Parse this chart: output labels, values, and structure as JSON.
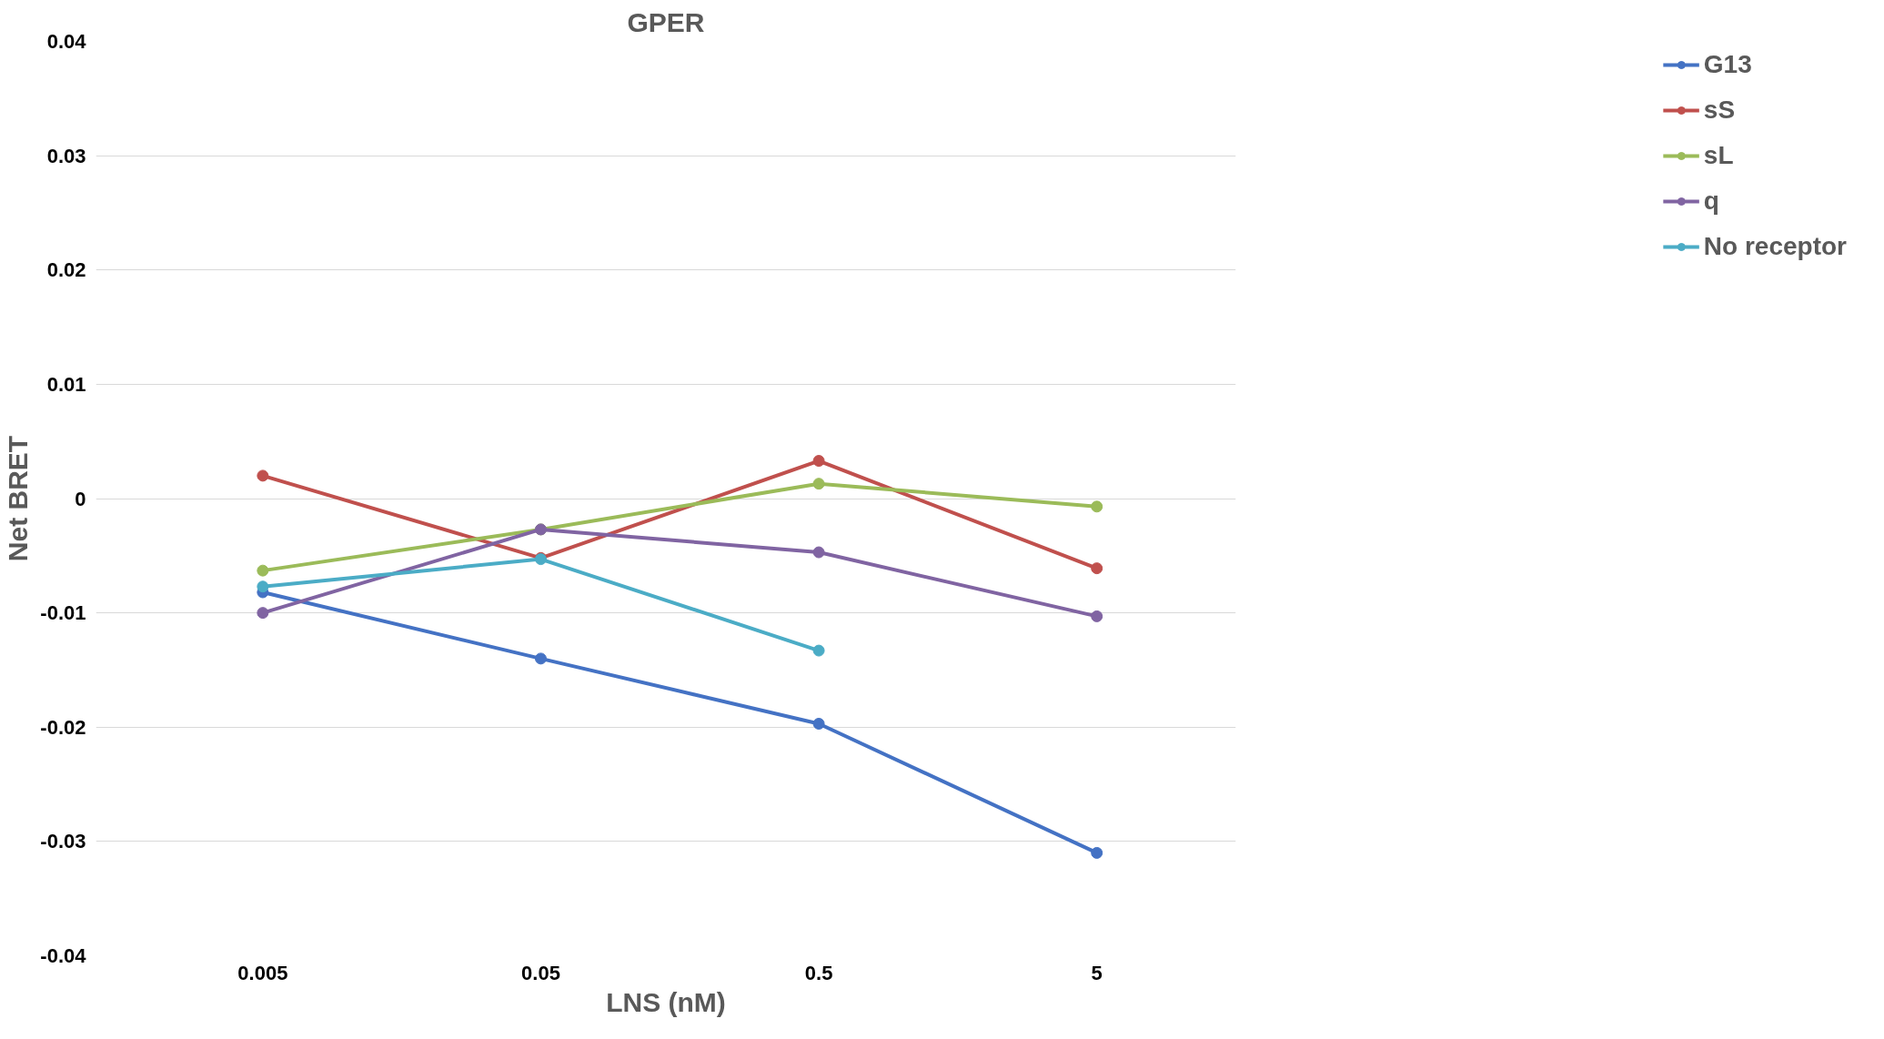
{
  "chart_data": {
    "type": "line",
    "title": "GPER",
    "xlabel": "LNS (nM)",
    "ylabel": "Net BRET",
    "categories": [
      "0.005",
      "0.05",
      "0.5",
      "5"
    ],
    "series": [
      {
        "name": "G13",
        "color": "#4472c4",
        "values": [
          -0.0082,
          -0.014,
          -0.0197,
          -0.031
        ]
      },
      {
        "name": "sS",
        "color": "#c0504d",
        "values": [
          0.002,
          -0.0052,
          0.0033,
          -0.0061
        ]
      },
      {
        "name": "sL",
        "color": "#9bbb59",
        "values": [
          -0.0063,
          -0.0027,
          0.0013,
          -0.0007
        ]
      },
      {
        "name": "q",
        "color": "#8064a2",
        "values": [
          -0.01,
          -0.0027,
          -0.0047,
          -0.0103
        ]
      },
      {
        "name": "No receptor",
        "color": "#4bacc6",
        "values": [
          -0.0077,
          -0.0053,
          -0.0133,
          null
        ]
      }
    ],
    "ylim": [
      -0.04,
      0.04
    ],
    "yticks": [
      -0.04,
      -0.03,
      -0.02,
      -0.01,
      0,
      0.01,
      0.02,
      0.03,
      0.04
    ],
    "grid": "y",
    "legend": "right",
    "marker": "circle",
    "line_style": "solid"
  }
}
